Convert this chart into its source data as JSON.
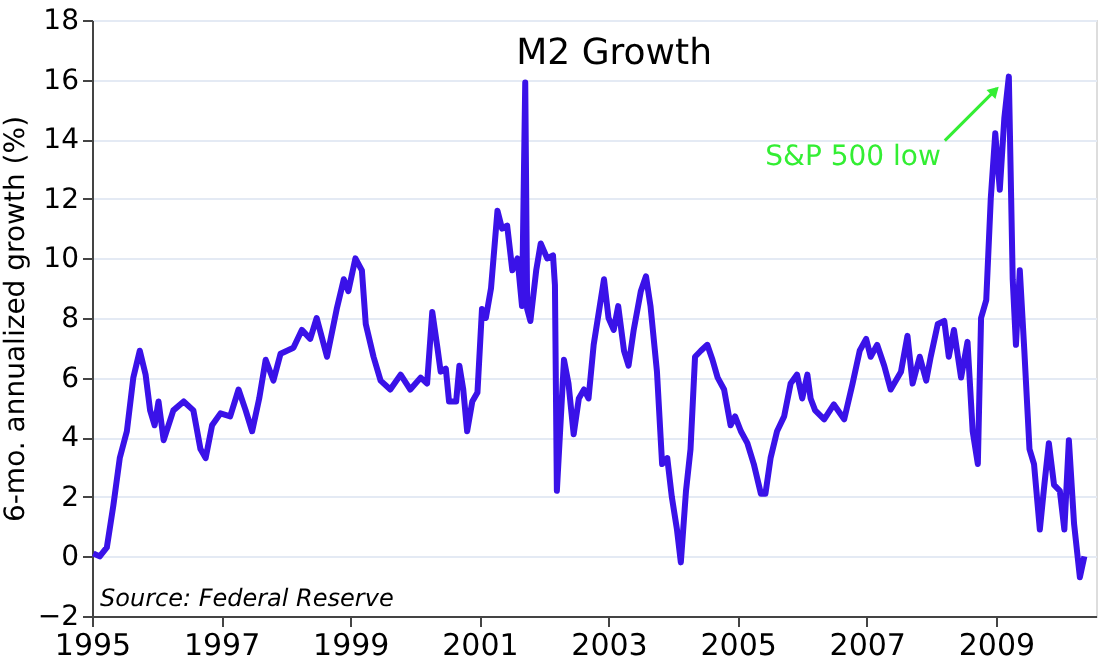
{
  "chart_data": {
    "type": "line",
    "title": "M2 Growth",
    "ylabel": "6-mo. annualized growth (%)",
    "xlim": [
      1995,
      2010.55
    ],
    "xticks": [
      1995,
      1997,
      1999,
      2001,
      2003,
      2005,
      2007,
      2009
    ],
    "ylim": [
      -2,
      18
    ],
    "yticks": [
      -2,
      0,
      2,
      4,
      6,
      8,
      10,
      12,
      14,
      16,
      18
    ],
    "grid": "y",
    "annotations": [
      {
        "text": "S&P 500 low",
        "x": 2009.2,
        "y": 16.1
      },
      "Source: Federal Reserve"
    ],
    "series": [
      {
        "color": "#3a12e8",
        "x": [
          1995.02,
          1995.12,
          1995.23,
          1995.33,
          1995.43,
          1995.54,
          1995.64,
          1995.74,
          1995.83,
          1995.9,
          1995.97,
          1996.03,
          1996.11,
          1996.26,
          1996.42,
          1996.57,
          1996.68,
          1996.76,
          1996.86,
          1996.99,
          1997.14,
          1997.27,
          1997.38,
          1997.48,
          1997.59,
          1997.69,
          1997.81,
          1997.92,
          1998.12,
          1998.25,
          1998.38,
          1998.48,
          1998.64,
          1998.79,
          1998.9,
          1998.97,
          1999.08,
          1999.18,
          1999.24,
          1999.36,
          1999.47,
          1999.62,
          1999.78,
          1999.93,
          2000.09,
          2000.19,
          2000.27,
          2000.35,
          2000.4,
          2000.48,
          2000.53,
          2000.64,
          2000.69,
          2000.75,
          2000.81,
          2000.89,
          2000.97,
          2001.04,
          2001.1,
          2001.18,
          2001.28,
          2001.35,
          2001.43,
          2001.51,
          2001.59,
          2001.66,
          2001.71,
          2001.74,
          2001.79,
          2001.88,
          2001.95,
          2002.05,
          2002.14,
          2002.17,
          2002.2,
          2002.31,
          2002.38,
          2002.46,
          2002.54,
          2002.62,
          2002.69,
          2002.77,
          2002.85,
          2002.93,
          2003.0,
          2003.08,
          2003.15,
          2003.24,
          2003.31,
          2003.39,
          2003.5,
          2003.58,
          2003.65,
          2003.75,
          2003.83,
          2003.91,
          2003.98,
          2004.06,
          2004.12,
          2004.2,
          2004.27,
          2004.34,
          2004.43,
          2004.53,
          2004.61,
          2004.69,
          2004.79,
          2004.89,
          2004.96,
          2005.05,
          2005.15,
          2005.25,
          2005.36,
          2005.43,
          2005.51,
          2005.61,
          2005.72,
          2005.82,
          2005.92,
          2006.0,
          2006.08,
          2006.13,
          2006.2,
          2006.34,
          2006.49,
          2006.65,
          2006.78,
          2006.89,
          2006.99,
          2007.06,
          2007.16,
          2007.27,
          2007.37,
          2007.53,
          2007.63,
          2007.71,
          2007.82,
          2007.92,
          2007.99,
          2008.1,
          2008.2,
          2008.27,
          2008.35,
          2008.46,
          2008.56,
          2008.64,
          2008.72,
          2008.77,
          2008.85,
          2008.92,
          2008.99,
          2009.06,
          2009.13,
          2009.2,
          2009.26,
          2009.31,
          2009.37,
          2009.44,
          2009.52,
          2009.59,
          2009.68,
          2009.75,
          2009.82,
          2009.9,
          2009.99,
          2010.06,
          2010.13,
          2010.21,
          2010.3,
          2010.37
        ],
        "values": [
          0.1,
          0.0,
          0.3,
          1.7,
          3.3,
          4.2,
          6.0,
          6.9,
          6.1,
          4.9,
          4.4,
          5.2,
          3.9,
          4.9,
          5.2,
          4.9,
          3.6,
          3.3,
          4.4,
          4.8,
          4.7,
          5.6,
          4.9,
          4.2,
          5.3,
          6.6,
          5.9,
          6.8,
          7.0,
          7.6,
          7.3,
          8.0,
          6.7,
          8.3,
          9.3,
          8.9,
          10.0,
          9.6,
          7.8,
          6.7,
          5.9,
          5.6,
          6.1,
          5.6,
          6.0,
          5.8,
          8.2,
          7.0,
          6.2,
          6.3,
          5.2,
          5.2,
          6.4,
          5.6,
          4.2,
          5.2,
          5.5,
          8.3,
          8.0,
          9.0,
          11.6,
          11.0,
          11.1,
          9.6,
          10.0,
          8.4,
          15.9,
          8.3,
          7.9,
          9.6,
          10.5,
          10.0,
          10.1,
          9.1,
          2.2,
          6.6,
          5.8,
          4.1,
          5.3,
          5.6,
          5.3,
          7.1,
          8.2,
          9.3,
          8.0,
          7.6,
          8.4,
          6.9,
          6.4,
          7.6,
          8.9,
          9.4,
          8.4,
          6.2,
          3.1,
          3.3,
          2.0,
          0.9,
          -0.2,
          2.2,
          3.6,
          6.7,
          6.9,
          7.1,
          6.6,
          6.0,
          5.6,
          4.4,
          4.7,
          4.2,
          3.8,
          3.1,
          2.1,
          2.1,
          3.3,
          4.2,
          4.7,
          5.8,
          6.1,
          5.3,
          6.1,
          5.3,
          4.9,
          4.6,
          5.1,
          4.6,
          5.8,
          6.9,
          7.3,
          6.7,
          7.1,
          6.4,
          5.6,
          6.2,
          7.4,
          5.8,
          6.7,
          5.9,
          6.7,
          7.8,
          7.9,
          6.7,
          7.6,
          6.0,
          7.2,
          4.2,
          3.1,
          8.0,
          8.6,
          12.0,
          14.2,
          12.3,
          14.7,
          16.1,
          9.3,
          7.1,
          9.6,
          6.9,
          3.6,
          3.1,
          0.9,
          2.4,
          3.8,
          2.4,
          2.2,
          0.9,
          3.9,
          1.1,
          -0.7,
          0.0
        ]
      }
    ]
  }
}
